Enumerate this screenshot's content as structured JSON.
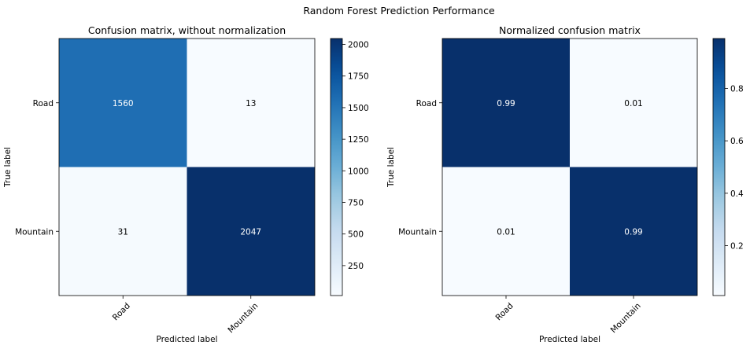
{
  "figure": {
    "suptitle": "Random Forest Prediction Performance"
  },
  "chart_data": [
    {
      "type": "heatmap",
      "title": "Confusion matrix, without normalization",
      "xlabel": "Predicted label",
      "ylabel": "True label",
      "x_categories": [
        "Road",
        "Mountain"
      ],
      "y_categories": [
        "Road",
        "Mountain"
      ],
      "values": [
        [
          1560,
          13
        ],
        [
          31,
          2047
        ]
      ],
      "cell_labels": [
        [
          "1560",
          "13"
        ],
        [
          "31",
          "2047"
        ]
      ],
      "colormap": "Blues",
      "color_range": [
        13,
        2047
      ],
      "colorbar_ticks": [
        250,
        500,
        750,
        1000,
        1250,
        1500,
        1750,
        2000
      ],
      "colorbar_tick_labels": [
        "250",
        "500",
        "750",
        "1000",
        "1250",
        "1500",
        "1750",
        "2000"
      ],
      "text_colors": {
        "dark_cell": "#ffffff",
        "light_cell": "#000000"
      },
      "grid": false
    },
    {
      "type": "heatmap",
      "title": "Normalized confusion matrix",
      "xlabel": "Predicted label",
      "ylabel": "True label",
      "x_categories": [
        "Road",
        "Mountain"
      ],
      "y_categories": [
        "Road",
        "Mountain"
      ],
      "values": [
        [
          0.99,
          0.01
        ],
        [
          0.01,
          0.99
        ]
      ],
      "cell_labels": [
        [
          "0.99",
          "0.01"
        ],
        [
          "0.01",
          "0.99"
        ]
      ],
      "colormap": "Blues",
      "color_range": [
        0.01,
        0.99
      ],
      "colorbar_ticks": [
        0.2,
        0.4,
        0.6,
        0.8
      ],
      "colorbar_tick_labels": [
        "0.2",
        "0.4",
        "0.6",
        "0.8"
      ],
      "text_colors": {
        "dark_cell": "#ffffff",
        "light_cell": "#000000"
      },
      "grid": false
    }
  ]
}
